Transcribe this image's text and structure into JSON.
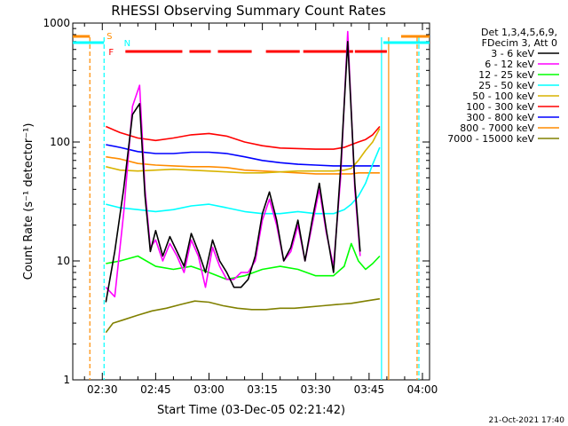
{
  "chart_data": {
    "type": "line",
    "title": "RHESSI Observing Summary Count Rates",
    "xlabel": "Start Time (03-Dec-05 02:21:42)",
    "ylabel": "Count Rate (s⁻¹ detector⁻¹)",
    "yscale": "log",
    "ylim": [
      1,
      1000
    ],
    "xlim_minutes_after_02_00": [
      21.7,
      122
    ],
    "x_ticks": [
      {
        "minutes": 30,
        "label": "02:30"
      },
      {
        "minutes": 45,
        "label": "02:45"
      },
      {
        "minutes": 60,
        "label": "03:00"
      },
      {
        "minutes": 75,
        "label": "03:15"
      },
      {
        "minutes": 90,
        "label": "03:30"
      },
      {
        "minutes": 105,
        "label": "03:45"
      },
      {
        "minutes": 120,
        "label": "04:00"
      }
    ],
    "y_ticks": [
      {
        "value": 1,
        "label": "1"
      },
      {
        "value": 10,
        "label": "10"
      },
      {
        "value": 100,
        "label": "100"
      },
      {
        "value": 1000,
        "label": "1000"
      }
    ],
    "legend_header": [
      "Det 1,3,4,5,6,9,",
      "FDecim 3, Att 0"
    ],
    "legend_position": "right",
    "series": [
      {
        "name": "3 - 6 keV",
        "color": "#000000",
        "x": [
          31.0,
          33.5,
          36.0,
          38.5,
          40.5,
          42.0,
          43.5,
          45.0,
          47.0,
          49.0,
          51.0,
          53.0,
          55.0,
          57.0,
          59.0,
          61.0,
          63.0,
          65.0,
          67.0,
          69.0,
          71.0,
          73.0,
          75.0,
          77.0,
          79.0,
          81.0,
          83.0,
          85.0,
          87.0,
          89.0,
          91.0,
          93.0,
          95.0,
          97.0,
          99.0,
          101.0,
          102.5
        ],
        "y": [
          4.5,
          12,
          40,
          170,
          210,
          35,
          12,
          18,
          11,
          16,
          12,
          9,
          17,
          12,
          8,
          15,
          10,
          8,
          6,
          6,
          7,
          11,
          25,
          38,
          22,
          10,
          13,
          22,
          10,
          22,
          45,
          18,
          8,
          60,
          700,
          45,
          12
        ]
      },
      {
        "name": "6 - 12 keV",
        "color": "#ff00ff",
        "x": [
          31.0,
          33.5,
          36.0,
          38.5,
          40.5,
          42.0,
          43.5,
          45.0,
          47.0,
          49.0,
          51.0,
          53.0,
          55.0,
          57.0,
          59.0,
          61.0,
          63.0,
          65.0,
          67.0,
          69.0,
          71.0,
          73.0,
          75.0,
          77.0,
          79.0,
          81.0,
          83.0,
          85.0,
          87.0,
          89.0,
          91.0,
          93.0,
          95.0,
          97.0,
          99.0,
          101.0,
          102.5
        ],
        "y": [
          6,
          5,
          25,
          200,
          300,
          40,
          13,
          15,
          10,
          14,
          11,
          8,
          15,
          11,
          6,
          13,
          9,
          7,
          7,
          8,
          8,
          10,
          22,
          33,
          20,
          10,
          12,
          20,
          10,
          20,
          40,
          17,
          9,
          50,
          850,
          40,
          11
        ]
      },
      {
        "name": "12 - 25 keV",
        "color": "#00ff00",
        "x": [
          31.0,
          35.0,
          40.0,
          45.0,
          50.0,
          55.0,
          60.0,
          65.0,
          70.0,
          75.0,
          80.0,
          85.0,
          90.0,
          95.0,
          98.0,
          100.0,
          102.0,
          104.0,
          106.0,
          108.0
        ],
        "y": [
          9.5,
          10,
          11,
          9,
          8.5,
          9,
          8,
          7,
          7.5,
          8.5,
          9,
          8.5,
          7.5,
          7.5,
          9,
          14,
          10,
          8.5,
          9.5,
          11
        ]
      },
      {
        "name": "25 - 50 keV",
        "color": "#00ffff",
        "x": [
          31.0,
          35.0,
          40.0,
          45.0,
          50.0,
          55.0,
          60.0,
          65.0,
          70.0,
          75.0,
          80.0,
          85.0,
          90.0,
          95.0,
          98.0,
          100.0,
          102.0,
          104.0,
          106.0,
          108.0
        ],
        "y": [
          30,
          28,
          27,
          26,
          27,
          29,
          30,
          28,
          26,
          25,
          25,
          26,
          25,
          25,
          27,
          30,
          35,
          45,
          65,
          90
        ]
      },
      {
        "name": "50 - 100 keV",
        "color": "#d8b400",
        "x": [
          31.0,
          35.0,
          40.0,
          45.0,
          50.0,
          55.0,
          60.0,
          65.0,
          70.0,
          75.0,
          80.0,
          85.0,
          90.0,
          95.0,
          98.0,
          100.0,
          102.0,
          104.0,
          106.0,
          108.0
        ],
        "y": [
          62,
          58,
          57,
          58,
          59,
          58,
          57,
          56,
          55,
          55,
          56,
          57,
          57,
          57,
          58,
          60,
          70,
          85,
          100,
          130
        ]
      },
      {
        "name": "100 - 300 keV",
        "color": "#ff0000",
        "x": [
          31.0,
          35.0,
          40.0,
          45.0,
          50.0,
          55.0,
          60.0,
          65.0,
          70.0,
          75.0,
          80.0,
          85.0,
          90.0,
          95.0,
          98.0,
          100.0,
          102.0,
          104.0,
          106.0,
          108.0
        ],
        "y": [
          135,
          120,
          108,
          103,
          108,
          115,
          118,
          112,
          100,
          93,
          89,
          88,
          87,
          87,
          90,
          95,
          100,
          105,
          115,
          135
        ]
      },
      {
        "name": "300 - 800 keV",
        "color": "#0000ff",
        "x": [
          31.0,
          35.0,
          40.0,
          45.0,
          50.0,
          55.0,
          60.0,
          65.0,
          70.0,
          75.0,
          80.0,
          85.0,
          90.0,
          95.0,
          98.0,
          100.0,
          102.0,
          104.0,
          106.0,
          108.0
        ],
        "y": [
          95,
          90,
          83,
          80,
          80,
          82,
          82,
          80,
          75,
          70,
          67,
          65,
          64,
          63,
          63,
          63,
          63,
          63,
          63,
          63
        ]
      },
      {
        "name": "800 - 7000 keV",
        "color": "#ff8c00",
        "x": [
          31.0,
          35.0,
          40.0,
          45.0,
          50.0,
          55.0,
          60.0,
          65.0,
          70.0,
          75.0,
          80.0,
          85.0,
          90.0,
          95.0,
          98.0,
          100.0,
          102.0,
          104.0,
          106.0,
          108.0
        ],
        "y": [
          75,
          72,
          66,
          64,
          63,
          62,
          62,
          61,
          58,
          57,
          56,
          55,
          54,
          54,
          54,
          54,
          55,
          55,
          55,
          55
        ]
      },
      {
        "name": "7000 - 15000 keV",
        "color": "#808000",
        "x": [
          31.0,
          33.0,
          36.0,
          40.0,
          44.0,
          48.0,
          52.0,
          56.0,
          60.0,
          64.0,
          68.0,
          72.0,
          76.0,
          80.0,
          84.0,
          88.0,
          92.0,
          96.0,
          100.0,
          104.0,
          108.0
        ],
        "y": [
          2.5,
          3.0,
          3.2,
          3.5,
          3.8,
          4.0,
          4.3,
          4.6,
          4.5,
          4.2,
          4.0,
          3.9,
          3.9,
          4.0,
          4.0,
          4.1,
          4.2,
          4.3,
          4.4,
          4.6,
          4.8
        ]
      }
    ],
    "annotations": [
      {
        "label": "S",
        "color": "#ff8c00"
      },
      {
        "label": "N",
        "color": "#00ffff"
      },
      {
        "label": "F",
        "color": "#ff0000"
      }
    ],
    "flare_flag_intervals_minutes": [
      [
        36.5,
        52.5
      ],
      [
        54.5,
        60.5
      ],
      [
        62.5,
        72.0
      ],
      [
        76.0,
        85.5
      ],
      [
        86.5,
        100.5
      ],
      [
        101.0,
        110.0
      ]
    ],
    "saa_flag_intervals_minutes": [
      [
        20.0,
        26.5
      ],
      [
        114.0,
        123.0
      ]
    ],
    "night_flag_intervals_minutes": [
      [
        20.0,
        30.5
      ],
      [
        109.0,
        123.0
      ]
    ],
    "vertical_markers_minutes": [
      {
        "x": 26.5,
        "color": "#ff8c00",
        "style": "dashed"
      },
      {
        "x": 30.5,
        "color": "#00ffff",
        "style": "dashed"
      },
      {
        "x": 110.5,
        "color": "#ff8c00",
        "style": "solid"
      },
      {
        "x": 108.5,
        "color": "#00ffff",
        "style": "solid"
      },
      {
        "x": 118.5,
        "color": "#ff8c00",
        "style": "dashed"
      },
      {
        "x": 119.0,
        "color": "#00ffff",
        "style": "dashed"
      }
    ]
  },
  "footer_timestamp": "21-Oct-2021 17:40"
}
